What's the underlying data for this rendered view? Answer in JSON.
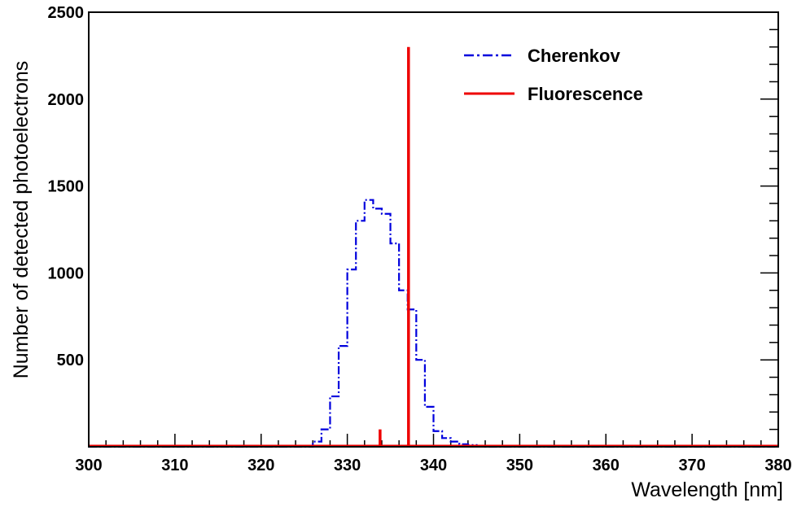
{
  "chart_data": {
    "type": "step",
    "title": "",
    "xlabel": "Wavelength [nm]",
    "ylabel": "Number of detected photoelectrons",
    "xlim": [
      300,
      380
    ],
    "ylim": [
      0,
      2500
    ],
    "x_ticks": [
      "300",
      "310",
      "320",
      "330",
      "340",
      "350",
      "360",
      "370",
      "380"
    ],
    "y_ticks": [
      "500",
      "1000",
      "1500",
      "2000",
      "2500"
    ],
    "x_tick_values": [
      300,
      310,
      320,
      330,
      340,
      350,
      360,
      370,
      380
    ],
    "y_tick_values": [
      500,
      1000,
      1500,
      2000,
      2500
    ],
    "legend_position": "top-right",
    "series": [
      {
        "name": "Cherenkov",
        "style": "dash-dot",
        "color": "#0000dd",
        "bin_width": 1,
        "bin_starts": [
          300,
          301,
          302,
          303,
          304,
          305,
          306,
          307,
          308,
          309,
          310,
          311,
          312,
          313,
          314,
          315,
          316,
          317,
          318,
          319,
          320,
          321,
          322,
          323,
          324,
          325,
          326,
          327,
          328,
          329,
          330,
          331,
          332,
          333,
          334,
          335,
          336,
          337,
          338,
          339,
          340,
          341,
          342,
          343,
          344,
          345,
          346,
          347,
          348,
          349,
          350,
          351,
          352,
          353,
          354,
          355,
          356,
          357,
          358,
          359,
          360,
          361,
          362,
          363,
          364,
          365,
          366,
          367,
          368,
          369,
          370,
          371,
          372,
          373,
          374,
          375,
          376,
          377,
          378,
          379
        ],
        "values": [
          0,
          0,
          0,
          0,
          0,
          0,
          0,
          0,
          0,
          0,
          0,
          0,
          0,
          0,
          0,
          0,
          0,
          0,
          0,
          0,
          0,
          0,
          0,
          0,
          0,
          0,
          30,
          100,
          290,
          580,
          1020,
          1300,
          1420,
          1370,
          1340,
          1170,
          900,
          790,
          500,
          230,
          90,
          50,
          30,
          15,
          10,
          5,
          0,
          0,
          0,
          0,
          0,
          0,
          0,
          0,
          0,
          0,
          0,
          0,
          0,
          0,
          0,
          0,
          0,
          0,
          0,
          0,
          0,
          0,
          0,
          0,
          0,
          0,
          0,
          0,
          0,
          0,
          0,
          0,
          0,
          0
        ]
      },
      {
        "name": "Fluorescence",
        "style": "solid",
        "color": "#ee0000",
        "lines": [
          {
            "x": 333.8,
            "value": 100
          },
          {
            "x": 337.1,
            "value": 2300
          }
        ]
      }
    ]
  }
}
